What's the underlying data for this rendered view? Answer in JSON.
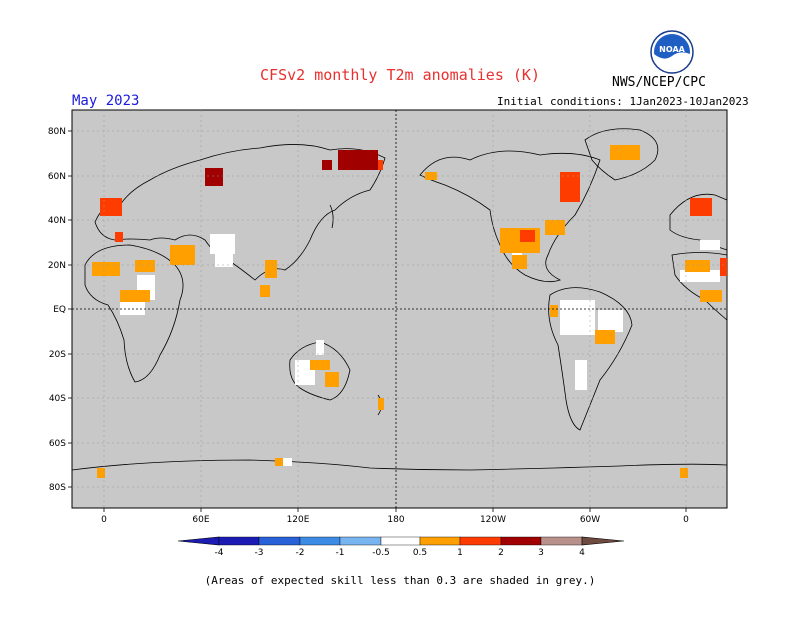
{
  "header": {
    "title": "CFSv2 monthly T2m anomalies (K)",
    "agency": "NWS/NCEP/CPC",
    "month": "May 2023",
    "initial_conditions": "Initial conditions: 1Jan2023-10Jan2023",
    "logo_text": "NOAA"
  },
  "map": {
    "lat_labels": [
      "80N",
      "60N",
      "40N",
      "20N",
      "EQ",
      "20S",
      "40S",
      "60S",
      "80S"
    ],
    "lon_labels": [
      "0",
      "60E",
      "120E",
      "180",
      "120W",
      "60W",
      "0"
    ],
    "background_color": "#c8c8c8"
  },
  "colorbar": {
    "tick_labels": [
      "-4",
      "-3",
      "-2",
      "-1",
      "-0.5",
      "0.5",
      "1",
      "2",
      "3",
      "4"
    ],
    "colors": [
      "#1c1cb4",
      "#2860d8",
      "#3c8ce6",
      "#78b4f0",
      "#ffffff",
      "#ffa000",
      "#ff3c00",
      "#a00000",
      "#b8928a",
      "#6e4a40"
    ]
  },
  "footnote": "(Areas of expected skill less than 0.3 are shaded in grey.)"
}
